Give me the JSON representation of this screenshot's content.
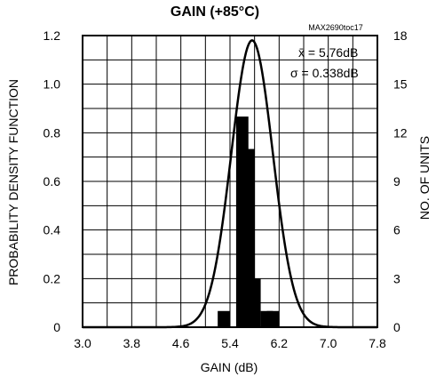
{
  "chart_data": {
    "type": "bar",
    "title": "GAIN (+85°C)",
    "watermark": "MAX2690toc17",
    "xlabel": "GAIN (dB)",
    "ylabel_left": "PROBABILITY DENSITY FUNCTION",
    "ylabel_right": "NO. OF UNITS",
    "xlim": [
      3.0,
      7.8
    ],
    "ylim_left": [
      0,
      1.2
    ],
    "ylim_right": [
      0,
      18
    ],
    "x_ticks": [
      "3.0",
      "3.8",
      "4.6",
      "5.4",
      "6.2",
      "7.0",
      "7.8"
    ],
    "x_tick_values": [
      3.0,
      3.8,
      4.6,
      5.4,
      6.2,
      7.0,
      7.8
    ],
    "y_left_ticks": [
      "0",
      "0.2",
      "0.4",
      "0.6",
      "0.8",
      "1.0",
      "1.2"
    ],
    "y_left_tick_values": [
      0,
      0.2,
      0.4,
      0.6,
      0.8,
      1.0,
      1.2
    ],
    "y_right_ticks": [
      "0",
      "3",
      "6",
      "9",
      "12",
      "15",
      "18"
    ],
    "y_right_tick_values": [
      0,
      3,
      6,
      9,
      12,
      15,
      18
    ],
    "grid": true,
    "bin_width": 0.2,
    "series": [
      {
        "type": "histogram",
        "x": [
          5.3,
          5.5,
          5.6,
          5.7,
          5.8,
          5.9,
          6.0,
          6.1
        ],
        "values": [
          1,
          0,
          13,
          11,
          3,
          0,
          1,
          1
        ],
        "axis": "right"
      },
      {
        "type": "pdf",
        "mean": 5.76,
        "sigma": 0.338,
        "axis": "left"
      }
    ],
    "stats": {
      "mean_label": "x̄ = 5.76dB",
      "sigma_symbol": "σ",
      "sigma_label": " = 0.338dB"
    }
  }
}
